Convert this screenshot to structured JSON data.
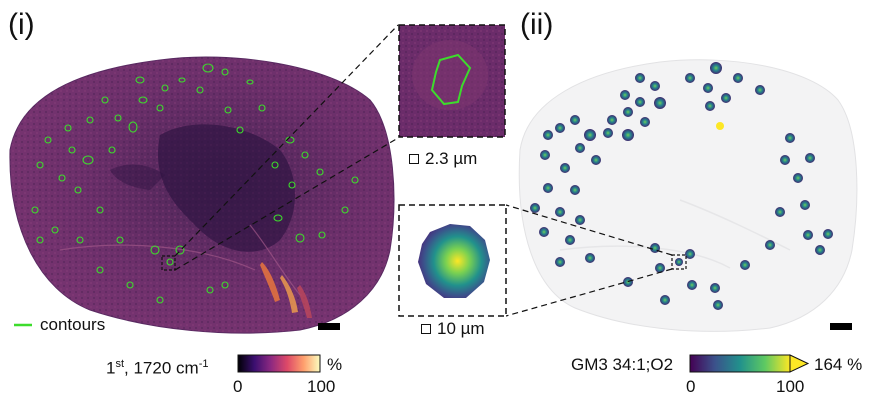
{
  "panels": {
    "left": {
      "label": "(i)"
    },
    "right": {
      "label": "(ii)"
    }
  },
  "legend": {
    "contours_label": "contours",
    "contour_color": "#3ddc2c"
  },
  "inset_top": {
    "scale_label": "2.3 µm"
  },
  "inset_bottom": {
    "scale_label": "10 µm"
  },
  "colorbar_left": {
    "label_prefix": "1",
    "label_superscript": "st",
    "label_main": ", 1720 cm",
    "label_unit_superscript": "-1",
    "unit": "%",
    "min_label": "0",
    "max_label": "100",
    "colormap": "inferno"
  },
  "colorbar_right": {
    "label": "GM3 34:1;O2",
    "extended_max_label": "164 %",
    "min_label": "0",
    "max_label": "100",
    "colormap": "viridis"
  }
}
